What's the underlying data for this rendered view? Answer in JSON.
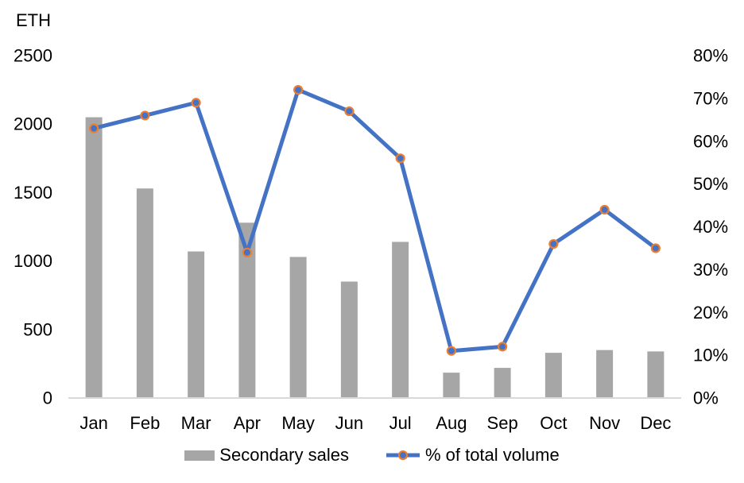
{
  "chart_data": {
    "type": "combo-bar-line",
    "title": "",
    "categories": [
      "Jan",
      "Feb",
      "Mar",
      "Apr",
      "May",
      "Jun",
      "Jul",
      "Aug",
      "Sep",
      "Oct",
      "Nov",
      "Dec"
    ],
    "series": [
      {
        "name": "Secondary sales",
        "type": "bar",
        "axis": "left",
        "color": "#a6a6a6",
        "values": [
          2050,
          1530,
          1070,
          1280,
          1030,
          850,
          1140,
          185,
          220,
          330,
          350,
          340
        ]
      },
      {
        "name": "% of total volume",
        "type": "line",
        "axis": "right",
        "color": "#4472c4",
        "marker_fill": "#4472c4",
        "marker_ring": "#ed7d31",
        "values": [
          63,
          66,
          69,
          34,
          72,
          67,
          56,
          11,
          12,
          36,
          44,
          35
        ]
      }
    ],
    "left_axis": {
      "title": "ETH",
      "min": 0,
      "max": 2500,
      "step": 500,
      "ticks": [
        "0",
        "500",
        "1000",
        "1500",
        "2000",
        "2500"
      ]
    },
    "right_axis": {
      "min": 0,
      "max": 80,
      "step": 10,
      "ticks": [
        "0%",
        "10%",
        "20%",
        "30%",
        "40%",
        "50%",
        "60%",
        "70%",
        "80%"
      ]
    },
    "grid": false,
    "legend_position": "bottom",
    "axis_line_color": "#d9d9d9",
    "text_color": "#000000"
  }
}
